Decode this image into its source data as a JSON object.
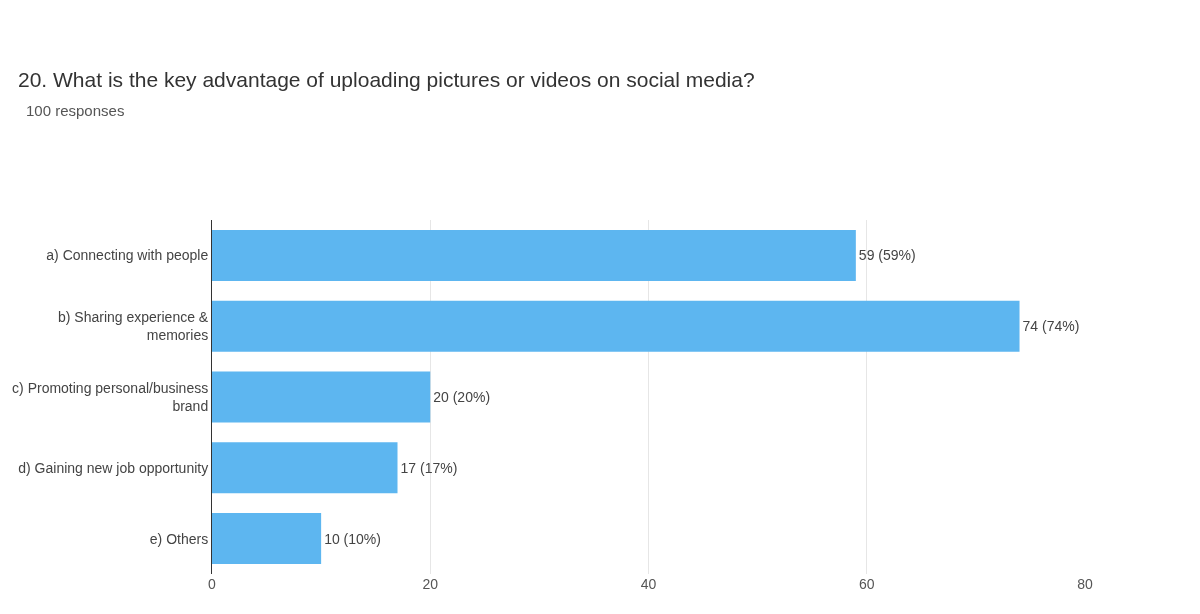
{
  "chart_data": {
    "type": "bar",
    "orientation": "horizontal",
    "title": "20. What is the key advantage of uploading pictures or videos on social media?",
    "subtitle": "100 responses",
    "categories": [
      "a) Connecting with people",
      "b) Sharing experience & memories",
      "c) Promoting personal/business brand",
      "d) Gaining new job opportunity",
      "e) Others"
    ],
    "values": [
      59,
      74,
      20,
      17,
      10
    ],
    "value_labels": [
      "59 (59%)",
      "74 (74%)",
      "20 (20%)",
      "17 (17%)",
      "10 (10%)"
    ],
    "color": "#5db6f0",
    "xlim": [
      0,
      80
    ],
    "xticks": [
      0,
      20,
      40,
      60,
      80
    ],
    "grid": "x",
    "legend": false
  }
}
